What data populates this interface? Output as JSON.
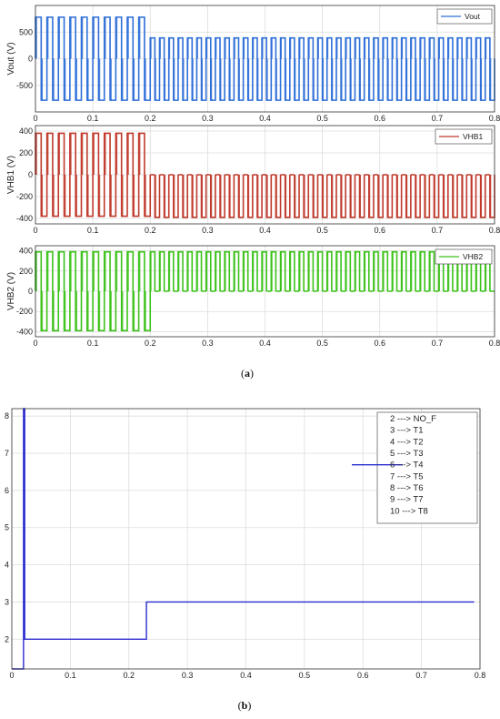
{
  "captions": {
    "a": "a",
    "b": "b"
  },
  "chart_data": [
    {
      "type": "line",
      "ylabel": "Vout (V)",
      "xlim": [
        0,
        0.8
      ],
      "ylim": [
        -1000,
        1000
      ],
      "xticks": [
        "0",
        "0.1",
        "0.2",
        "0.3",
        "0.4",
        "0.5",
        "0.6",
        "0.7",
        "0.8"
      ],
      "yticks": [
        {
          "value": 500,
          "label": "500"
        },
        {
          "value": 0,
          "label": "0"
        },
        {
          "value": -500,
          "label": "-500"
        }
      ],
      "grid": true,
      "legend": "top-right",
      "series": [
        {
          "name": "Vout",
          "color": "#2e6fd8",
          "segments": [
            {
              "x_start": 0.0,
              "x_end": 0.2,
              "high": 780,
              "low": -780,
              "pulses": 10
            },
            {
              "x_start": 0.2,
              "x_end": 0.8,
              "high": 390,
              "low": -780,
              "pulses": 37
            }
          ]
        }
      ]
    },
    {
      "type": "line",
      "ylabel": "VHB1 (V)",
      "xlim": [
        0,
        0.8
      ],
      "ylim": [
        -450,
        450
      ],
      "xticks": [
        "0",
        "0.1",
        "0.2",
        "0.3",
        "0.4",
        "0.5",
        "0.6",
        "0.7",
        "0.8"
      ],
      "yticks": [
        {
          "value": 400,
          "label": "400"
        },
        {
          "value": 200,
          "label": "200"
        },
        {
          "value": 0,
          "label": "0"
        },
        {
          "value": -200,
          "label": "-200"
        },
        {
          "value": -400,
          "label": "-400"
        }
      ],
      "grid": true,
      "legend": "top-right",
      "series": [
        {
          "name": "VHB1",
          "color": "#c0392b",
          "segments": [
            {
              "x_start": 0.0,
              "x_end": 0.2,
              "high": 380,
              "low": -380,
              "pulses": 10
            },
            {
              "x_start": 0.2,
              "x_end": 0.8,
              "high": 0,
              "low": -390,
              "pulses": 37
            }
          ]
        }
      ]
    },
    {
      "type": "line",
      "ylabel": "VHB2 (V)",
      "xlim": [
        0,
        0.8
      ],
      "ylim": [
        -450,
        450
      ],
      "xticks": [
        "0",
        "0.1",
        "0.2",
        "0.3",
        "0.4",
        "0.5",
        "0.6",
        "0.7",
        "0.8"
      ],
      "yticks": [
        {
          "value": 400,
          "label": "400"
        },
        {
          "value": 200,
          "label": "200"
        },
        {
          "value": 0,
          "label": "0"
        },
        {
          "value": -200,
          "label": "-200"
        },
        {
          "value": -400,
          "label": "-400"
        }
      ],
      "grid": true,
      "legend": "top-right",
      "series": [
        {
          "name": "VHB2",
          "color": "#3cc21a",
          "segments": [
            {
              "x_start": 0.0,
              "x_end": 0.2,
              "high": 390,
              "low": -390,
              "pulses": 10
            },
            {
              "x_start": 0.2,
              "x_end": 0.8,
              "high": 390,
              "low": 0,
              "pulses": 37
            }
          ]
        }
      ]
    },
    {
      "type": "line",
      "xlim": [
        0,
        0.8
      ],
      "ylim": [
        1.2,
        8.2
      ],
      "xticks": [
        "0",
        "0.1",
        "0.2",
        "0.3",
        "0.4",
        "0.5",
        "0.6",
        "0.7",
        "0.8"
      ],
      "yticks": [
        {
          "value": 2,
          "label": "2"
        },
        {
          "value": 3,
          "label": "3"
        },
        {
          "value": 4,
          "label": "4"
        },
        {
          "value": 5,
          "label": "5"
        },
        {
          "value": 6,
          "label": "6"
        },
        {
          "value": 7,
          "label": "7"
        },
        {
          "value": 8,
          "label": "8"
        }
      ],
      "grid": true,
      "legend": "top-right",
      "legend_entries": [
        "2 ---> NO_F",
        "3 ---> T1",
        "4 ---> T2",
        "5 ---> T3",
        "6 ---> T4",
        "7 ---> T5",
        "8 ---> T6",
        "9 ---> T7",
        "10 ---> T8"
      ],
      "legend_line_entry": 4,
      "series": [
        {
          "color": "#2a2ad0",
          "steps": [
            [
              0.0,
              1.2
            ],
            [
              0.02,
              1.2
            ],
            [
              0.02,
              8.2
            ],
            [
              0.022,
              8.2
            ],
            [
              0.022,
              2.0
            ],
            [
              0.23,
              2.0
            ],
            [
              0.23,
              3.0
            ],
            [
              0.79,
              3.0
            ]
          ]
        }
      ]
    }
  ]
}
